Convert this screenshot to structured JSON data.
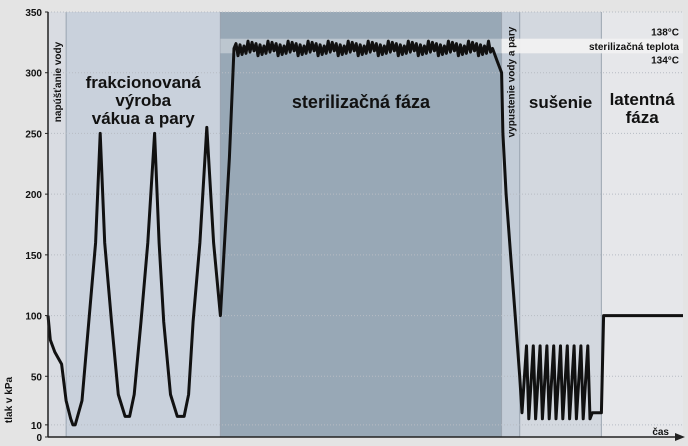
{
  "chart_data": {
    "type": "line",
    "title": "",
    "xlabel": "čas",
    "ylabel": "tlak v kPa",
    "ylim": [
      0,
      350
    ],
    "yticks": [
      0,
      10,
      50,
      100,
      150,
      200,
      250,
      300,
      350
    ],
    "grid": true,
    "line_color": "#111111",
    "phases": [
      {
        "label_lines": [
          "napúšťanie vody"
        ],
        "orientation": "vertical",
        "start": 0,
        "end": 4,
        "color": "#d9dce2"
      },
      {
        "label_lines": [
          "frakcionovaná",
          "výroba",
          "vákua a pary"
        ],
        "orientation": "horizontal",
        "start": 4,
        "end": 38,
        "color": "#c9d1dc"
      },
      {
        "label_lines": [
          "sterilizačná fáza"
        ],
        "orientation": "horizontal",
        "start": 38,
        "end": 100,
        "color": "#98a8b6"
      },
      {
        "label_lines": [
          "vypustenie vody a pary"
        ],
        "orientation": "vertical",
        "start": 100,
        "end": 104,
        "color": "#c3ccd7"
      },
      {
        "label_lines": [
          "sušenie"
        ],
        "orientation": "horizontal",
        "start": 104,
        "end": 122,
        "color": "#d3d8df"
      },
      {
        "label_lines": [
          "latentná",
          "fáza"
        ],
        "orientation": "horizontal",
        "start": 122,
        "end": 140,
        "color": "#e6e7ea"
      }
    ],
    "temperature_band": {
      "upper_label": "138°C",
      "middle_label": "sterilizačná teplota",
      "lower_label": "134°C",
      "y_low": 316,
      "y_high": 328,
      "color": "#f2f2f2"
    },
    "series": [
      {
        "values_note": "",
        "x": [
          0,
          0.5,
          1.5,
          3,
          4,
          5,
          5.5,
          6,
          7.5,
          9,
          10.5,
          11.5,
          12.5,
          14,
          15.5,
          17,
          18,
          19,
          20.5,
          22,
          23.5,
          24.5,
          25.5,
          27,
          28.5,
          30,
          31,
          32,
          33.5,
          35,
          36.5,
          38,
          40,
          41,
          98,
          99,
          100,
          100.3,
          101,
          102,
          103,
          104,
          104.5,
          105.5,
          106,
          107,
          107.5,
          108.5,
          109,
          110,
          110.5,
          111.5,
          112,
          113,
          113.5,
          114.5,
          115,
          116,
          116.5,
          117.5,
          118,
          119,
          119.5,
          120,
          121,
          122,
          122.5,
          123,
          140
        ],
        "y": [
          100,
          80,
          70,
          60,
          30,
          15,
          10,
          10,
          30,
          95,
          160,
          250,
          160,
          95,
          35,
          17,
          17,
          35,
          95,
          160,
          250,
          160,
          95,
          35,
          17,
          17,
          35,
          95,
          160,
          255,
          160,
          100,
          230,
          320,
          320,
          310,
          300,
          250,
          200,
          150,
          100,
          50,
          20,
          75,
          15,
          75,
          15,
          75,
          15,
          75,
          15,
          75,
          15,
          75,
          15,
          75,
          15,
          75,
          15,
          75,
          15,
          75,
          15,
          20,
          20,
          20,
          100,
          100,
          100
        ]
      }
    ]
  }
}
